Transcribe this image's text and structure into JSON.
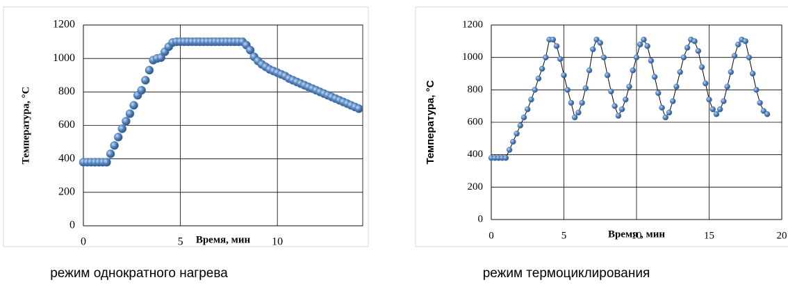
{
  "chart_data": [
    {
      "type": "line",
      "caption": "режим однократного нагрева",
      "x_label": "Время, мин",
      "y_label": "Температура, °C",
      "xlim": [
        0,
        14.4
      ],
      "ylim": [
        0,
        1200
      ],
      "xticks": [
        0,
        5,
        10
      ],
      "yticks": [
        0,
        200,
        400,
        600,
        800,
        1000,
        1200
      ],
      "grid": true,
      "connector": false,
      "series": [
        {
          "color": "#4f81bd",
          "x": [
            0,
            0.2,
            0.4,
            0.6,
            0.8,
            1.0,
            1.2,
            1.4,
            1.6,
            1.8,
            2.0,
            2.2,
            2.4,
            2.6,
            2.8,
            3.0,
            3.2,
            3.4,
            3.6,
            3.8,
            4.0,
            4.2,
            4.4,
            4.6,
            4.8,
            5.0,
            5.2,
            5.4,
            5.6,
            5.8,
            6.0,
            6.2,
            6.4,
            6.6,
            6.8,
            7.0,
            7.2,
            7.4,
            7.6,
            7.8,
            8.0,
            8.2,
            8.4,
            8.6,
            8.8,
            9.0,
            9.2,
            9.4,
            9.6,
            9.8,
            10.0,
            10.2,
            10.4,
            10.6,
            10.8,
            11.0,
            11.2,
            11.4,
            11.6,
            11.8,
            12.0,
            12.2,
            12.4,
            12.6,
            12.8,
            13.0,
            13.2,
            13.4,
            13.6,
            13.8,
            14.0,
            14.2
          ],
          "values": [
            380,
            380,
            380,
            380,
            380,
            380,
            380,
            430,
            480,
            530,
            580,
            625,
            670,
            720,
            780,
            810,
            870,
            930,
            990,
            1000,
            1005,
            1040,
            1070,
            1095,
            1100,
            1100,
            1100,
            1100,
            1100,
            1100,
            1100,
            1100,
            1100,
            1100,
            1100,
            1100,
            1100,
            1100,
            1100,
            1100,
            1100,
            1100,
            1080,
            1050,
            1010,
            985,
            965,
            950,
            935,
            925,
            915,
            905,
            895,
            880,
            870,
            860,
            850,
            840,
            830,
            820,
            810,
            800,
            790,
            780,
            770,
            760,
            750,
            740,
            730,
            720,
            710,
            700
          ]
        }
      ]
    },
    {
      "type": "line",
      "caption": "режим термоциклирования",
      "x_label": "Время , мин",
      "y_label": "Температура, °С",
      "xlim": [
        0,
        20
      ],
      "ylim": [
        0,
        1200
      ],
      "xticks": [
        0,
        5,
        10,
        15,
        20
      ],
      "yticks": [
        0,
        200,
        400,
        600,
        800,
        1000,
        1200
      ],
      "grid": true,
      "connector": true,
      "series": [
        {
          "color": "#4f81bd",
          "x": [
            0,
            0.25,
            0.5,
            0.75,
            1.0,
            1.25,
            1.5,
            1.75,
            2.0,
            2.25,
            2.5,
            2.75,
            3.0,
            3.25,
            3.5,
            3.75,
            4.0,
            4.25,
            4.5,
            4.75,
            5.0,
            5.25,
            5.5,
            5.75,
            6.0,
            6.25,
            6.5,
            6.75,
            7.0,
            7.25,
            7.5,
            7.75,
            8.0,
            8.25,
            8.5,
            8.75,
            9.0,
            9.25,
            9.5,
            9.75,
            10.0,
            10.25,
            10.5,
            10.75,
            11.0,
            11.25,
            11.5,
            11.75,
            12.0,
            12.25,
            12.5,
            12.75,
            13.0,
            13.25,
            13.5,
            13.75,
            14.0,
            14.25,
            14.5,
            14.75,
            15.0,
            15.25,
            15.5,
            15.75,
            16.0,
            16.25,
            16.5,
            16.75,
            17.0,
            17.25,
            17.5,
            17.75,
            18.0,
            18.25,
            18.5,
            18.75,
            19.0
          ],
          "values": [
            380,
            380,
            380,
            380,
            380,
            430,
            480,
            530,
            580,
            630,
            680,
            740,
            800,
            870,
            930,
            1000,
            1110,
            1110,
            1070,
            990,
            890,
            800,
            720,
            630,
            660,
            720,
            810,
            920,
            1050,
            1110,
            1090,
            1000,
            890,
            790,
            700,
            640,
            680,
            740,
            820,
            920,
            1000,
            1080,
            1110,
            1070,
            980,
            880,
            780,
            690,
            630,
            660,
            730,
            820,
            910,
            1000,
            1060,
            1110,
            1100,
            1040,
            940,
            840,
            740,
            680,
            650,
            680,
            730,
            820,
            910,
            1010,
            1080,
            1110,
            1100,
            1000,
            900,
            800,
            720,
            670,
            650
          ]
        }
      ]
    }
  ]
}
